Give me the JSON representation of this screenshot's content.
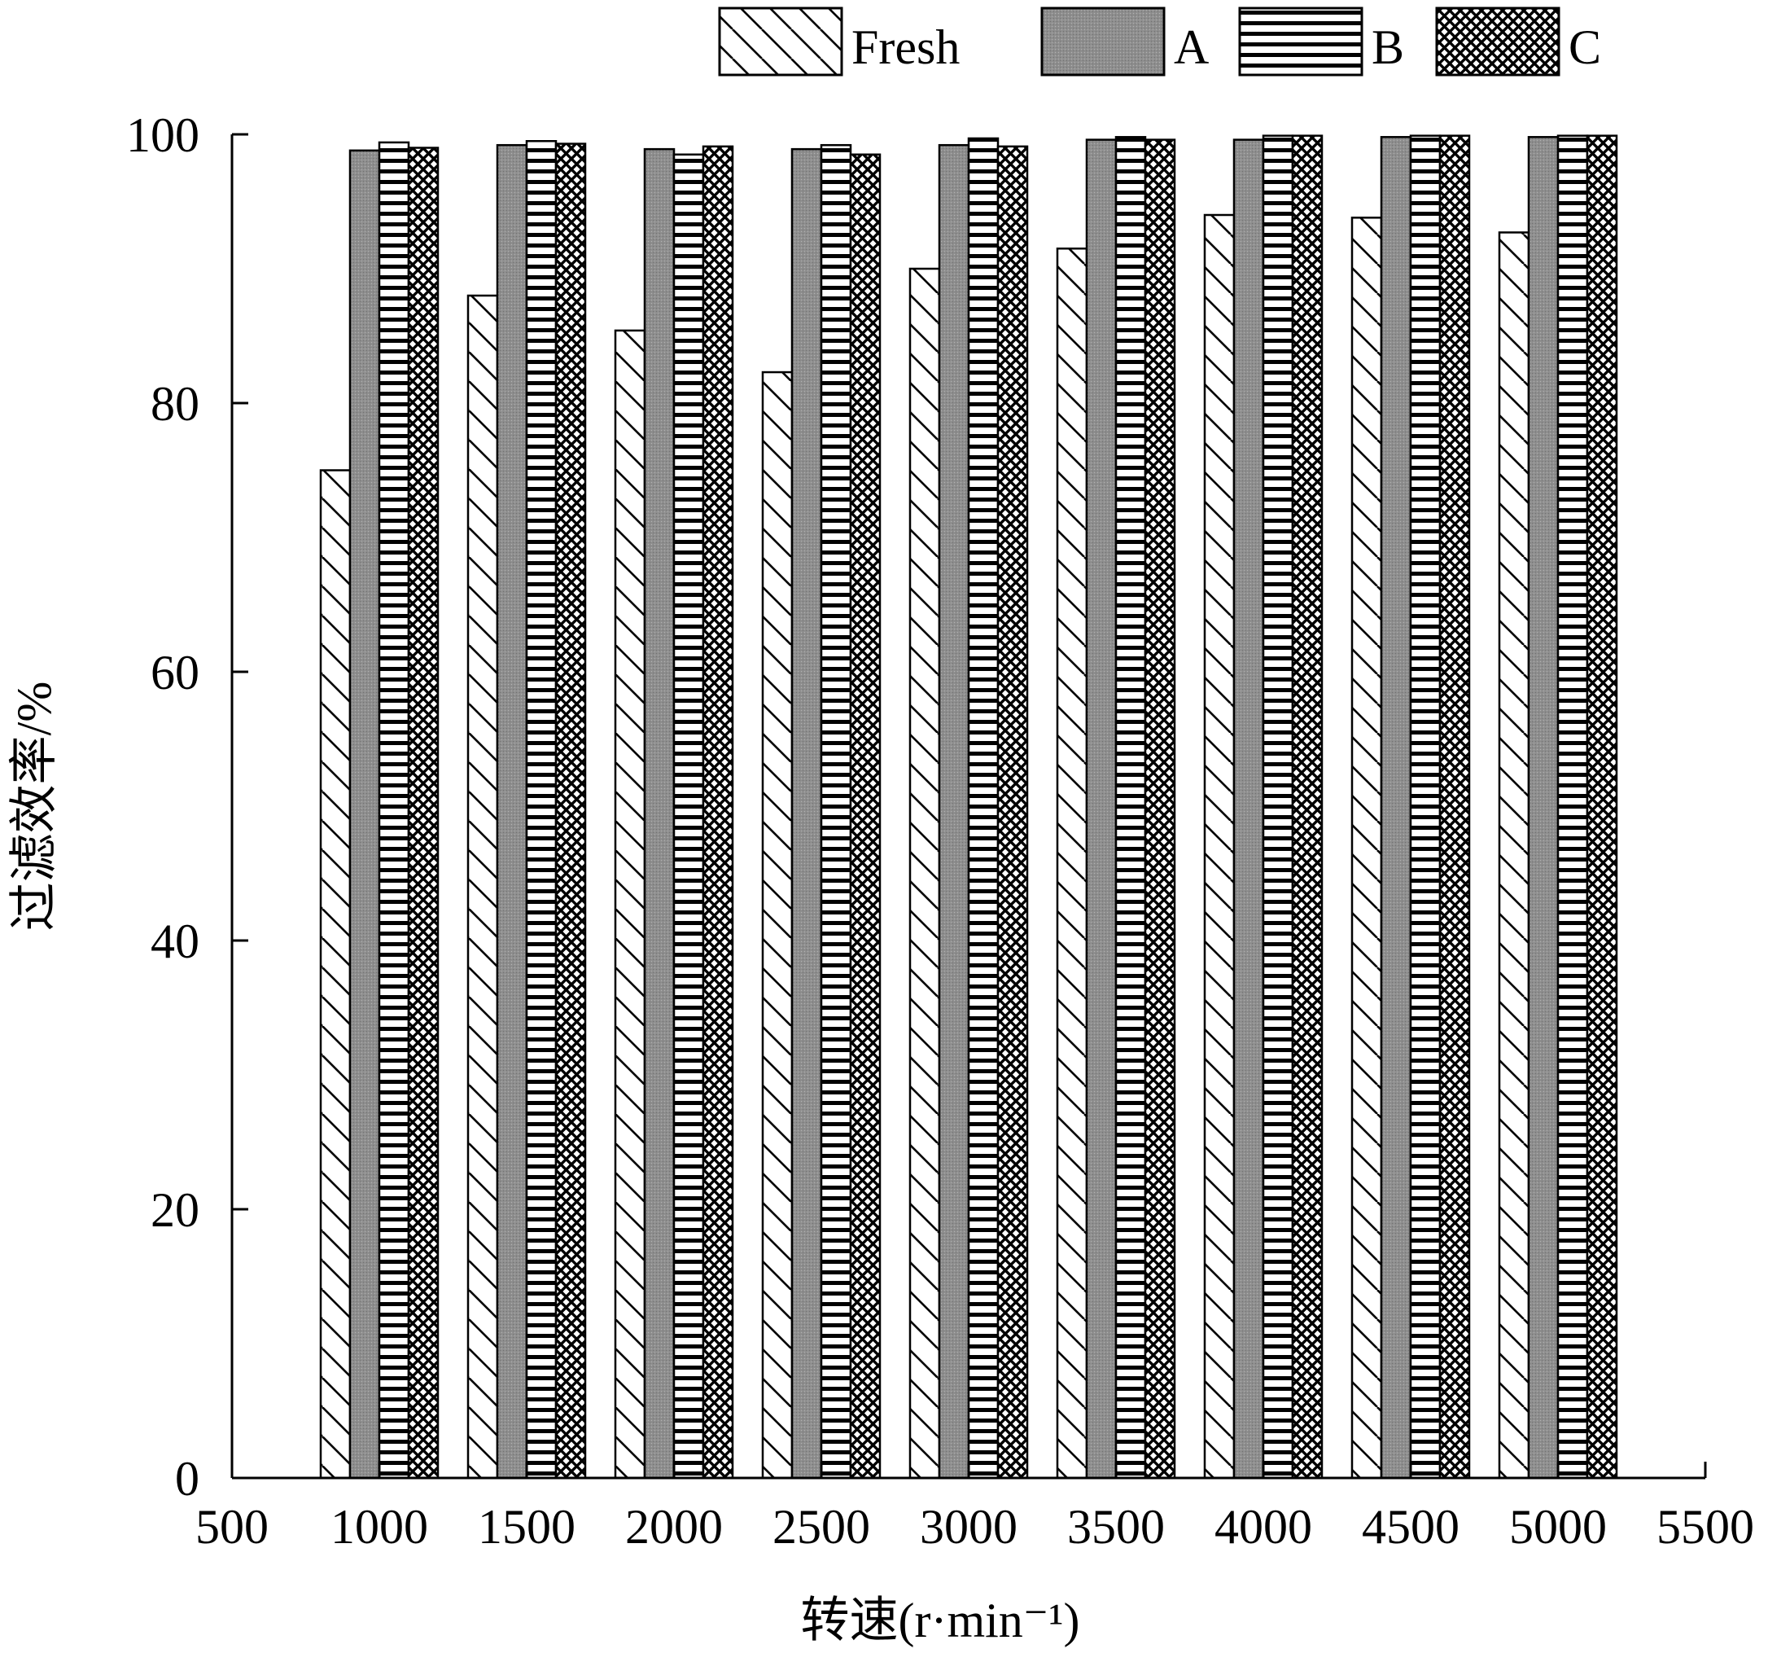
{
  "chart_data": {
    "type": "bar",
    "title": "",
    "xlabel": "转速(r·min⁻¹)",
    "ylabel": "过滤效率/%",
    "xlim": [
      500,
      5500
    ],
    "ylim": [
      0,
      100
    ],
    "x_ticks": [
      "500",
      "1000",
      "1500",
      "2000",
      "2500",
      "3000",
      "3500",
      "4000",
      "4500",
      "5000",
      "5500"
    ],
    "y_ticks": [
      "0",
      "20",
      "40",
      "60",
      "80",
      "100"
    ],
    "categories": [
      1000,
      1500,
      2000,
      2500,
      3000,
      3500,
      4000,
      4500,
      5000
    ],
    "legend_position": "top",
    "grid": false,
    "series": [
      {
        "name": "Fresh",
        "pattern": "diagonal-hatch",
        "values": [
          75.0,
          88.0,
          85.4,
          82.3,
          90.0,
          91.5,
          94.0,
          93.8,
          92.7
        ]
      },
      {
        "name": "A",
        "pattern": "gray-fill",
        "color": "#8c8c8c",
        "values": [
          98.8,
          99.2,
          98.9,
          98.9,
          99.2,
          99.6,
          99.6,
          99.8,
          99.8
        ]
      },
      {
        "name": "B",
        "pattern": "horizontal-lines",
        "values": [
          99.4,
          99.5,
          98.5,
          99.2,
          99.7,
          99.8,
          99.9,
          99.9,
          99.9
        ]
      },
      {
        "name": "C",
        "pattern": "crosshatch",
        "values": [
          99.0,
          99.3,
          99.1,
          98.5,
          99.1,
          99.6,
          99.9,
          99.9,
          99.9
        ]
      }
    ]
  }
}
